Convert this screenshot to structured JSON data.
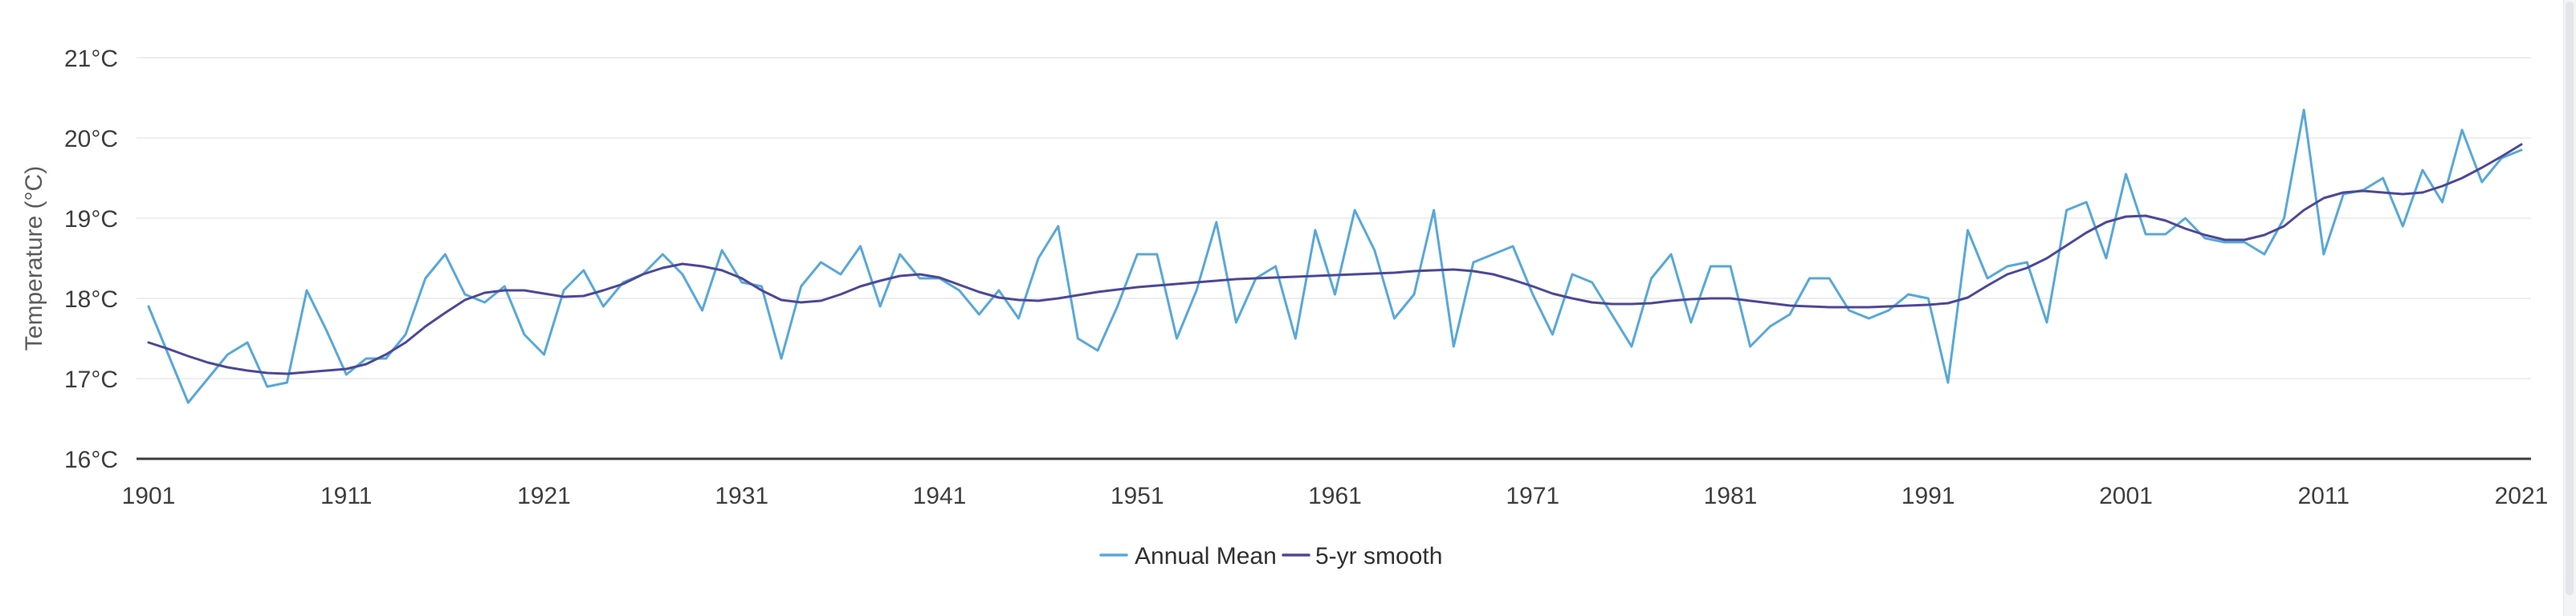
{
  "chart_data": {
    "type": "line",
    "title": "",
    "xlabel": "",
    "ylabel": "Temperature (°C)",
    "ylim": [
      16,
      21
    ],
    "grid": true,
    "legend_position": "bottom",
    "x_ticks": [
      1901,
      1911,
      1921,
      1931,
      1941,
      1951,
      1961,
      1971,
      1981,
      1991,
      2001,
      2011,
      2021
    ],
    "y_ticks": [
      {
        "value": 21,
        "label": "21°C"
      },
      {
        "value": 20,
        "label": "20°C"
      },
      {
        "value": 19,
        "label": "19°C"
      },
      {
        "value": 18,
        "label": "18°C"
      },
      {
        "value": 17,
        "label": "17°C"
      },
      {
        "value": 16,
        "label": "16°C"
      }
    ],
    "x": [
      1901,
      1902,
      1903,
      1904,
      1905,
      1906,
      1907,
      1908,
      1909,
      1910,
      1911,
      1912,
      1913,
      1914,
      1915,
      1916,
      1917,
      1918,
      1919,
      1920,
      1921,
      1922,
      1923,
      1924,
      1925,
      1926,
      1927,
      1928,
      1929,
      1930,
      1931,
      1932,
      1933,
      1934,
      1935,
      1936,
      1937,
      1938,
      1939,
      1940,
      1941,
      1942,
      1943,
      1944,
      1945,
      1946,
      1947,
      1948,
      1949,
      1950,
      1951,
      1952,
      1953,
      1954,
      1955,
      1956,
      1957,
      1958,
      1959,
      1960,
      1961,
      1962,
      1963,
      1964,
      1965,
      1966,
      1967,
      1968,
      1969,
      1970,
      1971,
      1972,
      1973,
      1974,
      1975,
      1976,
      1977,
      1978,
      1979,
      1980,
      1981,
      1982,
      1983,
      1984,
      1985,
      1986,
      1987,
      1988,
      1989,
      1990,
      1991,
      1992,
      1993,
      1994,
      1995,
      1996,
      1997,
      1998,
      1999,
      2000,
      2001,
      2002,
      2003,
      2004,
      2005,
      2006,
      2007,
      2008,
      2009,
      2010,
      2011,
      2012,
      2013,
      2014,
      2015,
      2016,
      2017,
      2018,
      2019,
      2020,
      2021
    ],
    "series": [
      {
        "name": "Annual Mean",
        "color": "#58a8d8",
        "values": [
          17.9,
          17.3,
          16.7,
          17.0,
          17.3,
          17.45,
          16.9,
          16.95,
          18.1,
          17.6,
          17.05,
          17.25,
          17.25,
          17.55,
          18.25,
          18.55,
          18.05,
          17.95,
          18.15,
          17.55,
          17.3,
          18.1,
          18.35,
          17.9,
          18.2,
          18.3,
          18.55,
          18.3,
          17.85,
          18.6,
          18.2,
          18.15,
          17.25,
          18.15,
          18.45,
          18.3,
          18.65,
          17.9,
          18.55,
          18.25,
          18.25,
          18.1,
          17.8,
          18.1,
          17.75,
          18.5,
          18.9,
          17.5,
          17.35,
          17.9,
          18.55,
          18.55,
          17.5,
          18.1,
          18.95,
          17.7,
          18.25,
          18.4,
          17.5,
          18.85,
          18.05,
          19.1,
          18.6,
          17.75,
          18.05,
          19.1,
          17.4,
          18.45,
          18.55,
          18.65,
          18.05,
          17.55,
          18.3,
          18.2,
          17.8,
          17.4,
          18.25,
          18.55,
          17.7,
          18.4,
          18.4,
          17.4,
          17.65,
          17.8,
          18.25,
          18.25,
          17.85,
          17.75,
          17.85,
          18.05,
          18.0,
          16.95,
          18.85,
          18.25,
          18.4,
          18.45,
          17.7,
          19.1,
          19.2,
          18.5,
          19.55,
          18.8,
          18.8,
          19.0,
          18.75,
          18.7,
          18.7,
          18.55,
          19.0,
          20.35,
          18.55,
          19.3,
          19.35,
          19.5,
          18.9,
          19.6,
          19.2,
          20.1,
          19.45,
          19.75,
          19.85
        ]
      },
      {
        "name": "5-yr smooth",
        "color": "#4d4896",
        "values": [
          17.45,
          17.37,
          17.28,
          17.2,
          17.14,
          17.1,
          17.07,
          17.06,
          17.08,
          17.1,
          17.12,
          17.18,
          17.3,
          17.45,
          17.65,
          17.82,
          17.98,
          18.07,
          18.1,
          18.1,
          18.06,
          18.02,
          18.03,
          18.1,
          18.18,
          18.3,
          18.38,
          18.43,
          18.4,
          18.35,
          18.25,
          18.1,
          17.98,
          17.95,
          17.97,
          18.05,
          18.15,
          18.22,
          18.28,
          18.3,
          18.26,
          18.17,
          18.08,
          18.01,
          17.98,
          17.97,
          18.0,
          18.04,
          18.08,
          18.11,
          18.14,
          18.16,
          18.18,
          18.2,
          18.22,
          18.24,
          18.25,
          18.26,
          18.27,
          18.28,
          18.29,
          18.3,
          18.31,
          18.32,
          18.34,
          18.35,
          18.36,
          18.34,
          18.3,
          18.23,
          18.15,
          18.06,
          18.0,
          17.95,
          17.93,
          17.93,
          17.94,
          17.97,
          17.99,
          18.0,
          18.0,
          17.97,
          17.94,
          17.91,
          17.9,
          17.89,
          17.89,
          17.89,
          17.9,
          17.91,
          17.92,
          17.94,
          18.01,
          18.16,
          18.3,
          18.38,
          18.5,
          18.66,
          18.82,
          18.95,
          19.02,
          19.03,
          18.97,
          18.87,
          18.79,
          18.73,
          18.73,
          18.79,
          18.9,
          19.1,
          19.25,
          19.32,
          19.34,
          19.32,
          19.3,
          19.32,
          19.4,
          19.5,
          19.63,
          19.77,
          19.92
        ]
      }
    ],
    "colors": {
      "grid": "#e8e8e8",
      "axis_line": "#3d3d3d",
      "tick_text": "#3e3e3e",
      "axis_title_text": "#5c5c5c",
      "legend_text": "#303030",
      "background": "#ffffff"
    }
  }
}
